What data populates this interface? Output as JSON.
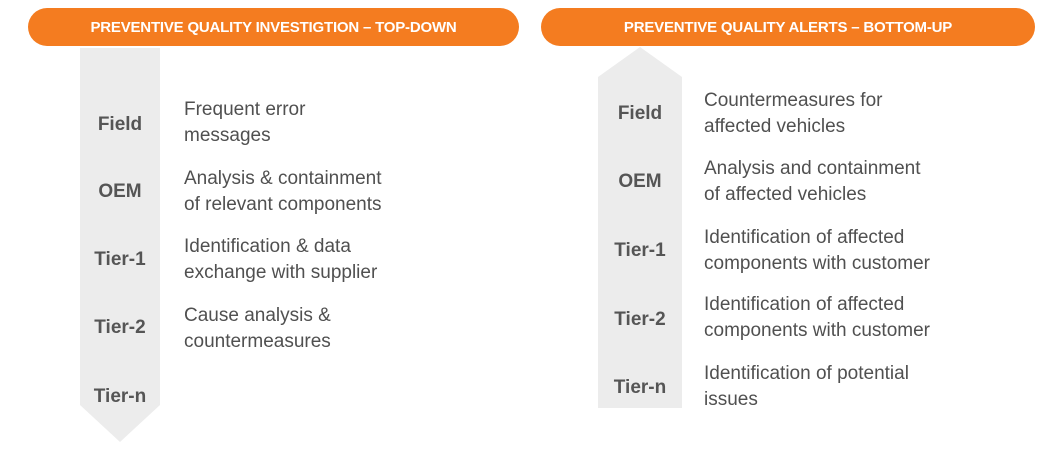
{
  "left_panel": {
    "title": "PREVENTIVE QUALITY INVESTIGTION – TOP-DOWN",
    "direction": "top-down",
    "rows": [
      {
        "tier": "Field",
        "desc": [
          "Frequent error",
          "messages"
        ]
      },
      {
        "tier": "OEM",
        "desc": [
          "Analysis & containment",
          "of relevant components"
        ]
      },
      {
        "tier": "Tier-1",
        "desc": [
          "Identification  & data",
          "exchange with supplier"
        ]
      },
      {
        "tier": "Tier-2",
        "desc": [
          "Cause analysis &",
          "countermeasures"
        ]
      },
      {
        "tier": "Tier-n",
        "desc": []
      }
    ]
  },
  "right_panel": {
    "title": "PREVENTIVE QUALITY ALERTS – BOTTOM-UP",
    "direction": "bottom-up",
    "rows": [
      {
        "tier": "Field",
        "desc": [
          "Countermeasures  for",
          "affected vehicles"
        ]
      },
      {
        "tier": "OEM",
        "desc": [
          "Analysis and containment",
          "of affected vehicles"
        ]
      },
      {
        "tier": "Tier-1",
        "desc": [
          "Identification  of affected",
          "components  with customer"
        ]
      },
      {
        "tier": "Tier-2",
        "desc": [
          "Identification  of affected",
          "components  with customer"
        ]
      },
      {
        "tier": "Tier-n",
        "desc": [
          "Identification  of potential",
          "issues"
        ]
      }
    ]
  },
  "colors": {
    "accent": "#f47c20",
    "arrow": "#ececec",
    "tier_text": "#555555",
    "desc_text": "#505050"
  }
}
